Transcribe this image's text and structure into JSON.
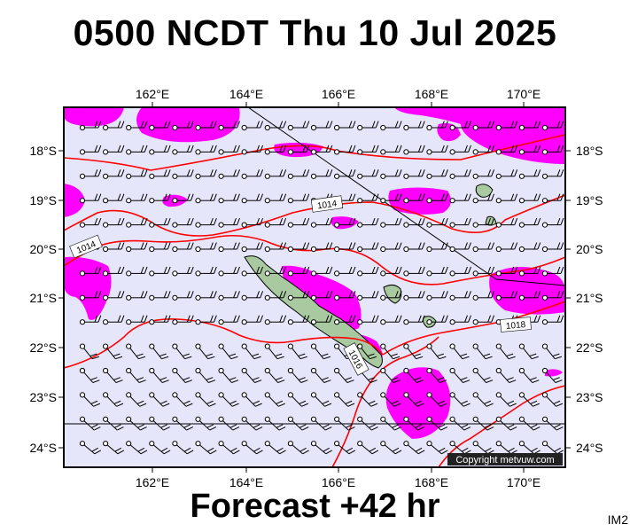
{
  "header": {
    "title": "0500 NCDT Thu 10 Jul 2025"
  },
  "footer": {
    "forecast": "Forecast +42 hr",
    "code": "IM2"
  },
  "map": {
    "lon_labels": [
      "162°E",
      "164°E",
      "166°E",
      "168°E",
      "170°E"
    ],
    "lat_labels": [
      "18°S",
      "19°S",
      "20°S",
      "21°S",
      "22°S",
      "23°S",
      "24°S"
    ],
    "isobar_labels": [
      "1014",
      "1014",
      "1018",
      "1016"
    ],
    "copyright": "Copyright metvuw.com",
    "colors": {
      "background": "#e6e6fa",
      "rain": "#ff00ff",
      "isobar": "#ff0000",
      "land": "#a9c9a0",
      "frame": "#000000"
    }
  }
}
